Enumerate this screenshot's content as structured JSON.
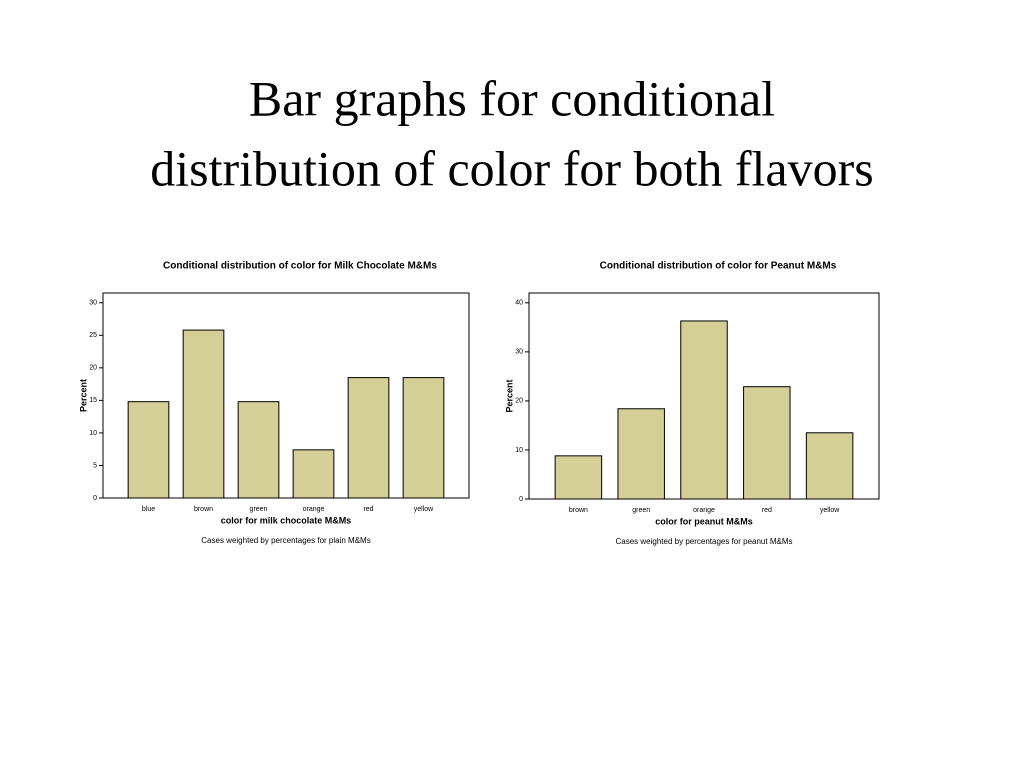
{
  "title": [
    "Bar graphs for conditional",
    "distribution of color for both flavors"
  ],
  "chart_data": [
    {
      "type": "bar",
      "title": "Conditional distribution of color for Milk Chocolate M&Ms",
      "ylabel": "Percent",
      "xlabel": "color for milk chocolate M&Ms",
      "footnote": "Cases weighted by percentages for plain M&Ms",
      "categories": [
        "blue",
        "brown",
        "green",
        "orange",
        "red",
        "yellow"
      ],
      "values": [
        14.8,
        25.8,
        14.8,
        7.4,
        18.5,
        18.5
      ],
      "color": "#d4cf96",
      "ylim": [
        0,
        31.5
      ],
      "yticks": [
        0,
        5,
        10,
        15,
        20,
        25,
        30
      ]
    },
    {
      "type": "bar",
      "title": "Conditional distribution of color for Peanut M&Ms",
      "ylabel": "Percent",
      "xlabel": "color for peanut M&Ms",
      "footnote": "Cases weighted by percentages for peanut M&Ms",
      "categories": [
        "brown",
        "green",
        "orange",
        "red",
        "yellow"
      ],
      "values": [
        8.8,
        18.4,
        36.3,
        22.9,
        13.5
      ],
      "color": "#d4cf96",
      "ylim": [
        0,
        42
      ],
      "yticks": [
        0,
        10,
        20,
        30,
        40
      ]
    }
  ]
}
